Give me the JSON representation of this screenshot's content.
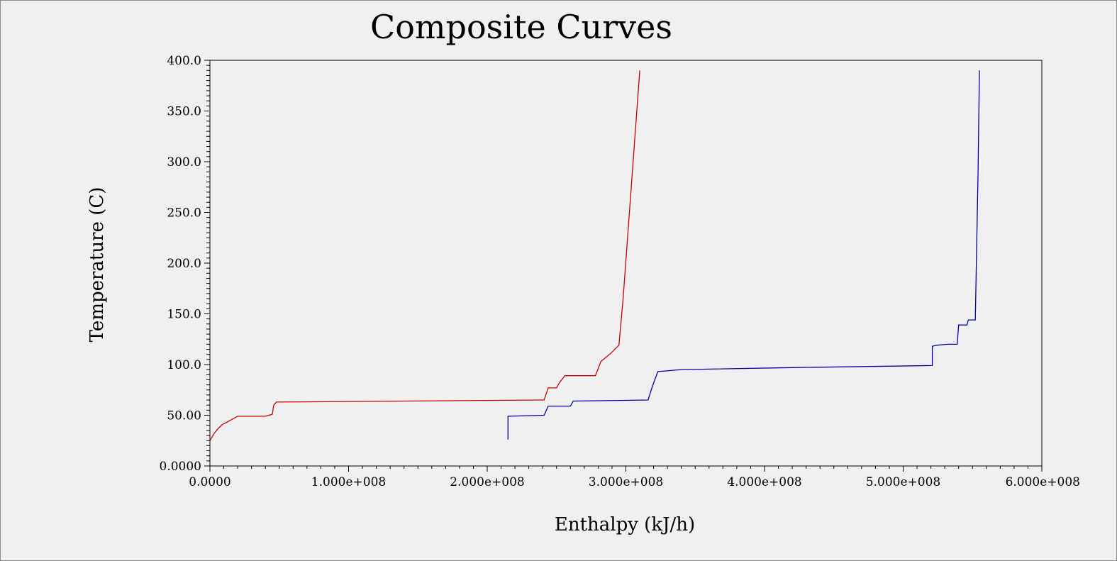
{
  "chart_data": {
    "type": "line",
    "title": "Composite Curves",
    "xlabel": "Enthalpy (kJ/h)",
    "ylabel": "Temperature (C)",
    "xlim": [
      0,
      600000000
    ],
    "ylim": [
      0,
      400
    ],
    "grid": false,
    "x_ticks": [
      0,
      100000000,
      200000000,
      300000000,
      400000000,
      500000000,
      600000000
    ],
    "x_tick_labels": [
      "0.0000",
      "1.000e+008",
      "2.000e+008",
      "3.000e+008",
      "4.000e+008",
      "5.000e+008",
      "6.000e+008"
    ],
    "y_ticks": [
      0,
      50,
      100,
      150,
      200,
      250,
      300,
      350,
      400
    ],
    "y_tick_labels": [
      "0.0000",
      "50.00",
      "100.0",
      "150.0",
      "200.0",
      "250.0",
      "300.0",
      "350.0",
      "400.0"
    ],
    "series": [
      {
        "color": "#cc0000",
        "x": [
          0,
          3000000,
          6000000,
          9000000,
          12000000,
          16000000,
          20000000,
          40000000,
          45000000,
          46000000,
          48000000,
          140000000,
          240000000,
          241000000,
          244000000,
          250000000,
          252000000,
          256000000,
          278000000,
          282000000,
          289000000,
          295000000,
          298000000,
          310000000
        ],
        "y": [
          25,
          32,
          37,
          41,
          43,
          46,
          49,
          49,
          51,
          60,
          63,
          64,
          65,
          65,
          77,
          77,
          82,
          89,
          89,
          103,
          111,
          119,
          165,
          390
        ]
      },
      {
        "color": "#0000aa",
        "x": [
          215000000,
          215000000,
          241000000,
          244000000,
          260000000,
          262000000,
          316000000,
          319000000,
          323000000,
          340000000,
          420000000,
          521000000,
          521000000,
          524000000,
          532000000,
          539000000,
          540000000,
          546000000,
          547000000,
          552000000,
          554000000,
          555000000
        ],
        "y": [
          26,
          49,
          50,
          59,
          59,
          64,
          65,
          78,
          93,
          95,
          97,
          99,
          118,
          119,
          120,
          120,
          139,
          139,
          144,
          144,
          290,
          390
        ]
      }
    ]
  }
}
